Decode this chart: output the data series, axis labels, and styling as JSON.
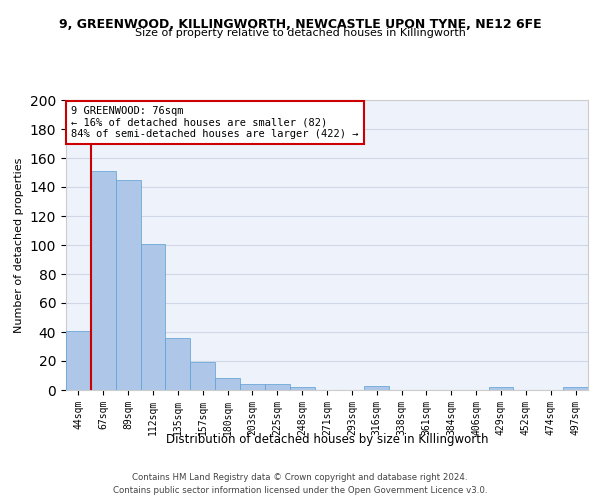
{
  "title1": "9, GREENWOOD, KILLINGWORTH, NEWCASTLE UPON TYNE, NE12 6FE",
  "title2": "Size of property relative to detached houses in Killingworth",
  "xlabel": "Distribution of detached houses by size in Killingworth",
  "ylabel": "Number of detached properties",
  "bar_labels": [
    "44sqm",
    "67sqm",
    "89sqm",
    "112sqm",
    "135sqm",
    "157sqm",
    "180sqm",
    "203sqm",
    "225sqm",
    "248sqm",
    "271sqm",
    "293sqm",
    "316sqm",
    "338sqm",
    "361sqm",
    "384sqm",
    "406sqm",
    "429sqm",
    "452sqm",
    "474sqm",
    "497sqm"
  ],
  "bar_values": [
    41,
    151,
    145,
    101,
    36,
    19,
    8,
    4,
    4,
    2,
    0,
    0,
    3,
    0,
    0,
    0,
    0,
    2,
    0,
    0,
    2
  ],
  "bar_color": "#aec6e8",
  "bar_edgecolor": "#5a9fd4",
  "red_line_bin_index": 1,
  "annotation_text": "9 GREENWOOD: 76sqm\n← 16% of detached houses are smaller (82)\n84% of semi-detached houses are larger (422) →",
  "annotation_box_color": "#ffffff",
  "annotation_border_color": "#cc0000",
  "red_line_color": "#cc0000",
  "grid_color": "#d0d8e8",
  "background_color": "#eef2fb",
  "ylim": [
    0,
    200
  ],
  "yticks": [
    0,
    20,
    40,
    60,
    80,
    100,
    120,
    140,
    160,
    180,
    200
  ],
  "footer1": "Contains HM Land Registry data © Crown copyright and database right 2024.",
  "footer2": "Contains public sector information licensed under the Open Government Licence v3.0."
}
